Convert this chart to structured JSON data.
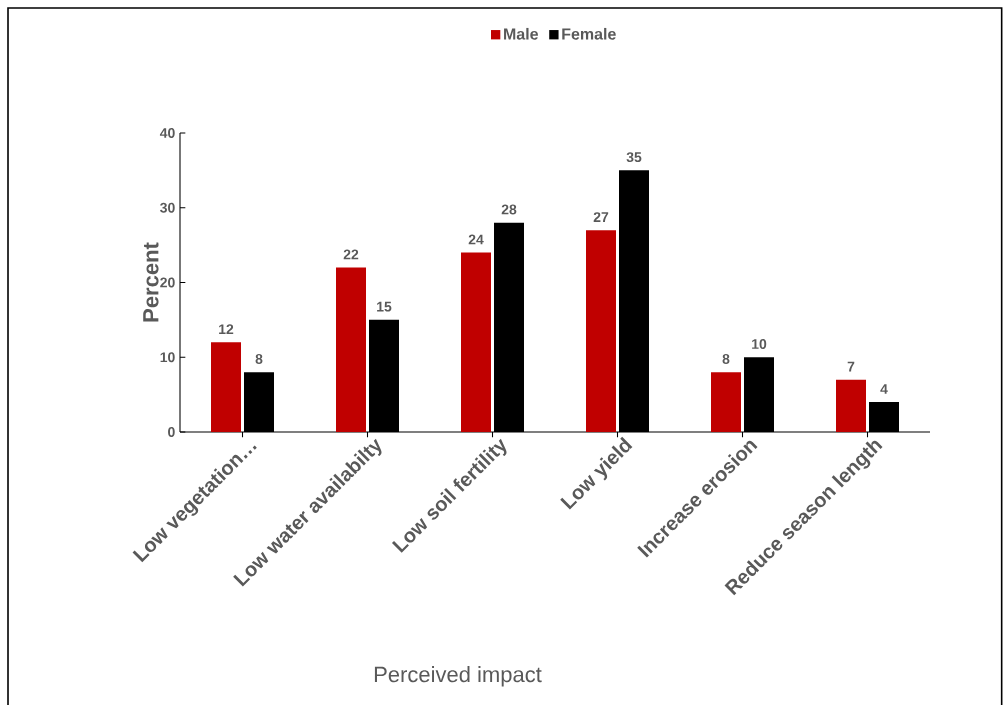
{
  "chart_data": {
    "type": "bar",
    "xlabel": "Perceived impact",
    "ylabel": "Percent",
    "categories": [
      "Low vegetation…",
      "Low water availabilty",
      "Low soil fertility",
      "Low yield",
      "Increase erosion",
      "Reduce season length"
    ],
    "series": [
      {
        "name": "Male",
        "color": "#c00000",
        "values": [
          12,
          22,
          24,
          27,
          8,
          7
        ]
      },
      {
        "name": "Female",
        "color": "#000000",
        "values": [
          8,
          15,
          28,
          35,
          10,
          4
        ]
      }
    ],
    "ylim": [
      0,
      40
    ],
    "yticks": [
      0,
      10,
      20,
      30,
      40
    ],
    "grid": false,
    "legend": "top",
    "data_labels": true
  }
}
